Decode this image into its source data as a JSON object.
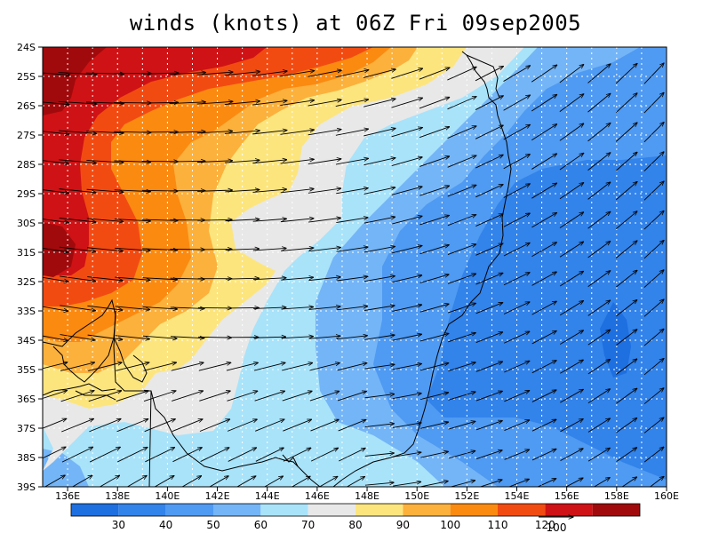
{
  "title": "winds (knots) at 06Z Fri 09sep2005",
  "lat_labels": [
    "24S",
    "25S",
    "26S",
    "27S",
    "28S",
    "29S",
    "30S",
    "31S",
    "32S",
    "33S",
    "34S",
    "35S",
    "36S",
    "37S",
    "38S",
    "39S"
  ],
  "lon_labels": [
    "136E",
    "138E",
    "140E",
    "142E",
    "144E",
    "146E",
    "148E",
    "150E",
    "152E",
    "154E",
    "156E",
    "158E",
    "160E"
  ],
  "colorbar": {
    "colors": [
      "#1e6fe0",
      "#3283ea",
      "#4f9af2",
      "#74b5f7",
      "#a8e3fa",
      "#e8e8e8",
      "#fde57e",
      "#fcb13c",
      "#fb8a11",
      "#f24b12",
      "#cf1215",
      "#a00a0c"
    ],
    "labels": [
      "30",
      "40",
      "50",
      "60",
      "70",
      "80",
      "90",
      "100",
      "110",
      "120"
    ]
  },
  "reference_vector_label": "100",
  "palette": {
    "c20": "#1e6fe0",
    "c30": "#3283ea",
    "c40": "#4f9af2",
    "c50": "#74b5f7",
    "c60": "#a8e3fa",
    "c70": "#e8e8e8",
    "c80": "#fde57e",
    "c90": "#fcb13c",
    "c100": "#fb8a11",
    "c110": "#f24b12",
    "c120": "#cf1215",
    "c130": "#a00a0c"
  }
}
